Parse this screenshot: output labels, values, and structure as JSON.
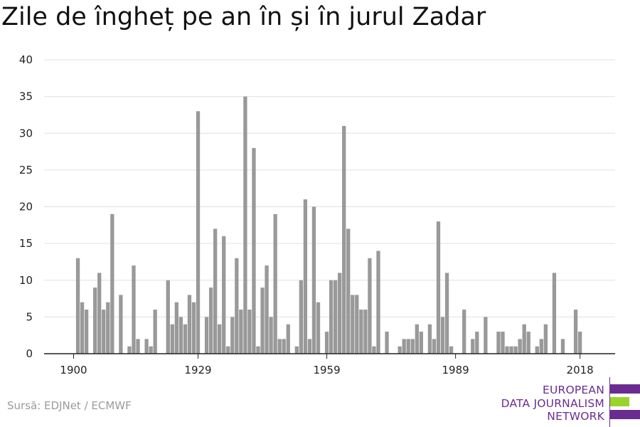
{
  "title": "Zile de îngheț pe an în și în jurul Zadar",
  "source": "Sursă: EDJNet / ECMWF",
  "logo": {
    "line1": "EUROPEAN",
    "line2": "DATA JOURNALISM",
    "line3": "NETWORK",
    "colors": {
      "purple": "#6a2c91",
      "green": "#9bd32d"
    }
  },
  "colors": {
    "bar": "#999999",
    "grid": "#e0e0e0",
    "axis": "#222222"
  },
  "chart_data": {
    "type": "bar",
    "x_start": 1900,
    "x_end": 2019,
    "x_ticks": [
      1900,
      1929,
      1959,
      1989,
      2018
    ],
    "y_ticks": [
      0,
      5,
      10,
      15,
      20,
      25,
      30,
      35,
      40
    ],
    "ylim": [
      0,
      40
    ],
    "grid": true,
    "values": [
      0,
      13,
      7,
      6,
      0,
      9,
      11,
      6,
      7,
      19,
      0,
      8,
      0,
      1,
      12,
      2,
      0,
      2,
      1,
      6,
      0,
      0,
      10,
      4,
      7,
      5,
      4,
      8,
      7,
      33,
      0,
      5,
      9,
      17,
      4,
      16,
      1,
      5,
      13,
      6,
      35,
      6,
      28,
      1,
      9,
      12,
      5,
      19,
      2,
      2,
      4,
      0,
      1,
      10,
      21,
      2,
      20,
      7,
      0,
      3,
      10,
      10,
      11,
      31,
      17,
      8,
      8,
      6,
      6,
      13,
      1,
      14,
      0,
      3,
      0,
      0,
      1,
      2,
      2,
      2,
      4,
      3,
      0,
      4,
      2,
      18,
      5,
      11,
      1,
      0,
      0,
      6,
      0,
      2,
      3,
      0,
      5,
      0,
      0,
      3,
      3,
      1,
      1,
      1,
      2,
      4,
      3,
      0,
      1,
      2,
      4,
      0,
      11,
      0,
      2,
      0,
      0,
      6,
      3,
      0
    ]
  }
}
